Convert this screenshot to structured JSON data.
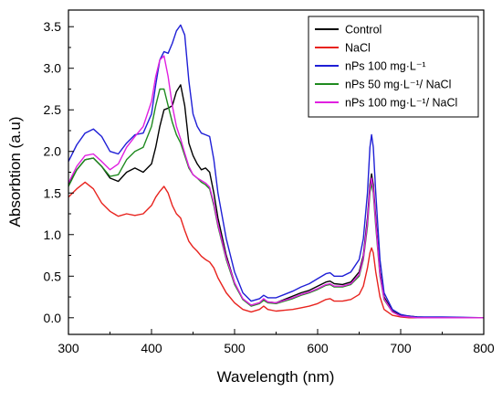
{
  "chart_data": {
    "type": "line",
    "xlabel": "Wavelength (nm)",
    "ylabel": "Absorbtion (a.u)",
    "xlim": [
      300,
      800
    ],
    "ylim": [
      -0.2,
      3.7
    ],
    "xticks": [
      300,
      400,
      500,
      600,
      700,
      800
    ],
    "yticks": [
      0.0,
      0.5,
      1.0,
      1.5,
      2.0,
      2.5,
      3.0,
      3.5
    ],
    "grid": false,
    "legend_position": "top-right",
    "series": [
      {
        "name": "Control",
        "color": "#000000",
        "x": [
          300,
          310,
          320,
          330,
          340,
          350,
          360,
          370,
          380,
          390,
          400,
          405,
          410,
          415,
          420,
          425,
          430,
          435,
          440,
          445,
          450,
          455,
          460,
          465,
          470,
          475,
          480,
          490,
          500,
          510,
          520,
          530,
          535,
          540,
          550,
          560,
          570,
          580,
          590,
          600,
          610,
          615,
          620,
          630,
          640,
          650,
          655,
          660,
          663,
          665,
          667,
          670,
          675,
          680,
          690,
          700,
          710,
          720,
          750,
          800
        ],
        "y": [
          1.6,
          1.78,
          1.9,
          1.92,
          1.82,
          1.68,
          1.64,
          1.75,
          1.8,
          1.75,
          1.85,
          2.05,
          2.3,
          2.5,
          2.52,
          2.55,
          2.72,
          2.8,
          2.55,
          2.1,
          1.95,
          1.85,
          1.78,
          1.8,
          1.75,
          1.5,
          1.2,
          0.75,
          0.42,
          0.22,
          0.15,
          0.18,
          0.22,
          0.19,
          0.18,
          0.22,
          0.26,
          0.3,
          0.33,
          0.38,
          0.43,
          0.44,
          0.41,
          0.4,
          0.43,
          0.55,
          0.75,
          1.2,
          1.6,
          1.73,
          1.6,
          1.2,
          0.55,
          0.25,
          0.08,
          0.03,
          0.02,
          0.01,
          0.0,
          0.0
        ]
      },
      {
        "name": "NaCl",
        "color": "#e8231e",
        "x": [
          300,
          310,
          320,
          330,
          340,
          350,
          360,
          370,
          380,
          390,
          400,
          405,
          410,
          415,
          420,
          425,
          430,
          435,
          440,
          445,
          450,
          455,
          460,
          465,
          470,
          475,
          480,
          490,
          500,
          510,
          520,
          530,
          535,
          540,
          550,
          560,
          570,
          580,
          590,
          600,
          610,
          615,
          620,
          630,
          640,
          650,
          655,
          660,
          663,
          665,
          667,
          670,
          675,
          680,
          690,
          700,
          710,
          720,
          750,
          800
        ],
        "y": [
          1.45,
          1.55,
          1.63,
          1.55,
          1.38,
          1.28,
          1.22,
          1.25,
          1.23,
          1.25,
          1.35,
          1.45,
          1.52,
          1.58,
          1.5,
          1.35,
          1.25,
          1.2,
          1.05,
          0.92,
          0.85,
          0.8,
          0.74,
          0.7,
          0.67,
          0.6,
          0.48,
          0.3,
          0.18,
          0.1,
          0.07,
          0.1,
          0.14,
          0.1,
          0.08,
          0.09,
          0.1,
          0.12,
          0.14,
          0.17,
          0.22,
          0.23,
          0.2,
          0.2,
          0.22,
          0.28,
          0.38,
          0.6,
          0.78,
          0.84,
          0.78,
          0.55,
          0.25,
          0.1,
          0.03,
          0.01,
          0.0,
          0.0,
          0.0,
          0.0
        ]
      },
      {
        "name": "nPs 100 mg·L⁻¹",
        "color": "#1f1fd6",
        "x": [
          300,
          310,
          320,
          330,
          340,
          350,
          360,
          370,
          380,
          390,
          400,
          405,
          410,
          415,
          420,
          425,
          430,
          435,
          440,
          445,
          450,
          455,
          460,
          465,
          470,
          475,
          480,
          490,
          500,
          510,
          520,
          530,
          535,
          540,
          550,
          560,
          570,
          580,
          590,
          600,
          610,
          615,
          620,
          630,
          640,
          650,
          655,
          660,
          663,
          665,
          667,
          670,
          675,
          680,
          690,
          700,
          710,
          720,
          750,
          800
        ],
        "y": [
          1.88,
          2.08,
          2.22,
          2.27,
          2.18,
          2.0,
          1.97,
          2.1,
          2.2,
          2.22,
          2.45,
          2.8,
          3.1,
          3.2,
          3.18,
          3.3,
          3.45,
          3.52,
          3.4,
          2.85,
          2.45,
          2.3,
          2.22,
          2.2,
          2.18,
          1.9,
          1.5,
          0.95,
          0.55,
          0.3,
          0.2,
          0.23,
          0.27,
          0.24,
          0.24,
          0.28,
          0.32,
          0.37,
          0.41,
          0.47,
          0.53,
          0.54,
          0.5,
          0.5,
          0.55,
          0.7,
          0.95,
          1.5,
          2.05,
          2.2,
          2.05,
          1.5,
          0.7,
          0.3,
          0.1,
          0.04,
          0.02,
          0.01,
          0.01,
          0.0
        ]
      },
      {
        "name": "nPs 50 mg·L⁻¹/ NaCl",
        "color": "#1f8a1f",
        "x": [
          300,
          310,
          320,
          330,
          340,
          350,
          360,
          370,
          380,
          390,
          400,
          405,
          410,
          415,
          420,
          425,
          430,
          435,
          440,
          445,
          450,
          455,
          460,
          465,
          470,
          475,
          480,
          490,
          500,
          510,
          520,
          530,
          535,
          540,
          550,
          560,
          570,
          580,
          590,
          600,
          610,
          615,
          620,
          630,
          640,
          650,
          655,
          660,
          663,
          665,
          667,
          670,
          675,
          680,
          690,
          700,
          710,
          720,
          750,
          800
        ],
        "y": [
          1.58,
          1.78,
          1.9,
          1.92,
          1.82,
          1.7,
          1.72,
          1.9,
          2.0,
          2.05,
          2.3,
          2.55,
          2.75,
          2.75,
          2.55,
          2.35,
          2.2,
          2.1,
          1.95,
          1.8,
          1.72,
          1.68,
          1.63,
          1.6,
          1.55,
          1.35,
          1.1,
          0.7,
          0.4,
          0.22,
          0.14,
          0.17,
          0.21,
          0.18,
          0.17,
          0.2,
          0.23,
          0.27,
          0.3,
          0.34,
          0.39,
          0.4,
          0.37,
          0.37,
          0.4,
          0.5,
          0.7,
          1.1,
          1.5,
          1.62,
          1.5,
          1.1,
          0.5,
          0.22,
          0.07,
          0.02,
          0.01,
          0.0,
          0.0,
          0.0
        ]
      },
      {
        "name": "nPs 100 mg·L⁻¹/ NaCl",
        "color": "#e020e0",
        "x": [
          300,
          310,
          320,
          330,
          340,
          350,
          360,
          370,
          380,
          390,
          400,
          405,
          410,
          415,
          420,
          425,
          430,
          435,
          440,
          445,
          450,
          455,
          460,
          465,
          470,
          475,
          480,
          490,
          500,
          510,
          520,
          530,
          535,
          540,
          550,
          560,
          570,
          580,
          590,
          600,
          610,
          615,
          620,
          630,
          640,
          650,
          655,
          660,
          663,
          665,
          667,
          670,
          675,
          680,
          690,
          700,
          710,
          720,
          750,
          800
        ],
        "y": [
          1.62,
          1.82,
          1.95,
          1.97,
          1.88,
          1.78,
          1.85,
          2.05,
          2.18,
          2.3,
          2.6,
          2.9,
          3.1,
          3.15,
          2.9,
          2.55,
          2.3,
          2.15,
          1.98,
          1.82,
          1.72,
          1.68,
          1.65,
          1.62,
          1.57,
          1.38,
          1.12,
          0.72,
          0.42,
          0.23,
          0.15,
          0.18,
          0.23,
          0.19,
          0.18,
          0.21,
          0.24,
          0.28,
          0.31,
          0.35,
          0.4,
          0.41,
          0.38,
          0.38,
          0.41,
          0.52,
          0.72,
          1.15,
          1.55,
          1.68,
          1.55,
          1.15,
          0.52,
          0.23,
          0.07,
          0.02,
          0.01,
          0.0,
          0.0,
          0.0
        ]
      }
    ]
  }
}
